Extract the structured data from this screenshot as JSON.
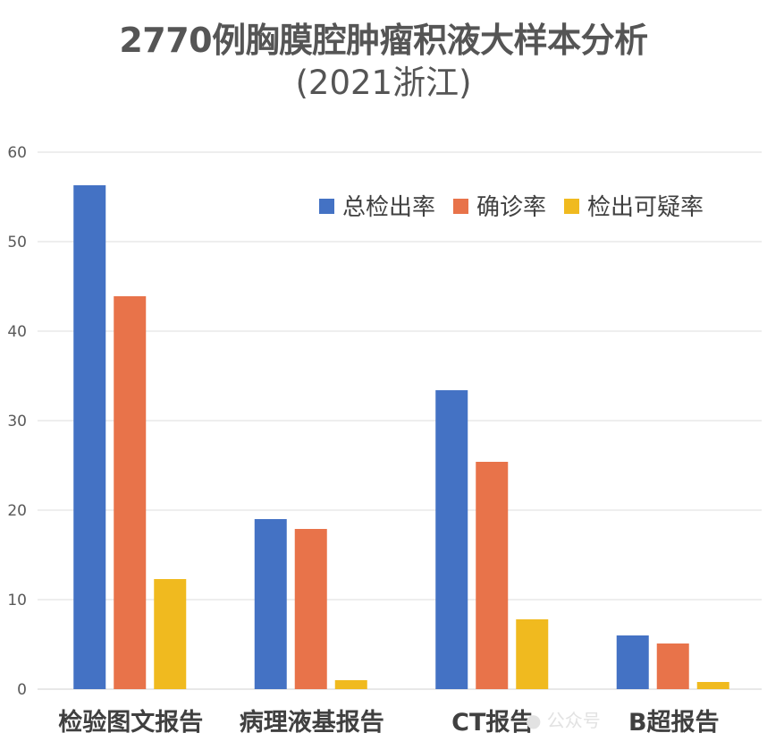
{
  "chart_data": {
    "type": "bar",
    "title": "2770例胸膜腔肿瘤积液大样本分析",
    "subtitle": "(2021浙江)",
    "categories": [
      "检验图文报告",
      "病理液基报告",
      "CT报告",
      "B超报告"
    ],
    "series": [
      {
        "name": "总检出率",
        "values": [
          56.3,
          19.0,
          33.4,
          6.0
        ]
      },
      {
        "name": "确诊率",
        "values": [
          43.9,
          17.9,
          25.4,
          5.1
        ]
      },
      {
        "name": "检出可疑率",
        "values": [
          12.3,
          1.0,
          7.8,
          0.8
        ]
      }
    ],
    "ylim": [
      0,
      60
    ],
    "yticks": [
      0,
      10,
      20,
      30,
      40,
      50,
      60
    ],
    "xlabel": "",
    "ylabel": "",
    "grid": true,
    "legend_position": "top-right",
    "colors": [
      "#4472C4",
      "#E8734A",
      "#F0BA1F"
    ]
  },
  "watermark": "公众号"
}
